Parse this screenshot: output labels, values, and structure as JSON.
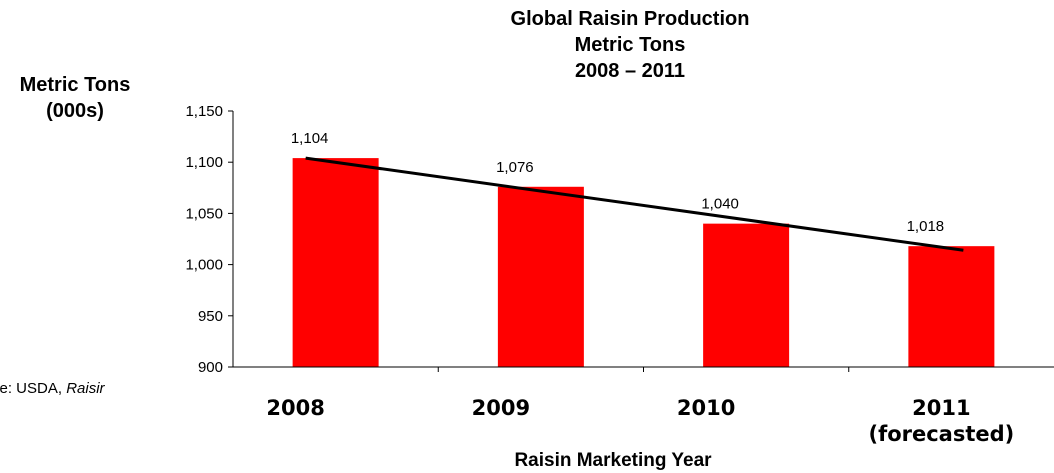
{
  "chart_data": {
    "type": "bar",
    "title_lines": [
      "Global Raisin Production",
      "Metric Tons",
      "2008 – 2011"
    ],
    "ylabel_lines": [
      "Metric Tons",
      "(000s)"
    ],
    "xlabel": "Raisin Marketing Year",
    "categories": [
      {
        "year": "2008",
        "note": ""
      },
      {
        "year": "2009",
        "note": ""
      },
      {
        "year": "2010",
        "note": ""
      },
      {
        "year": "2011",
        "note": "(forecasted)"
      }
    ],
    "values": [
      1104,
      1076,
      1040,
      1018
    ],
    "data_labels": [
      "1,104",
      "1,076",
      "1,040",
      "1,018"
    ],
    "ylim": [
      900,
      1150
    ],
    "yticks": [
      900,
      950,
      1000,
      1050,
      1100,
      1150
    ],
    "ytick_labels": [
      "900",
      "950",
      "1,000",
      "1,050",
      "1,100",
      "1,150"
    ],
    "trendline": {
      "start": 1104,
      "end": 1014
    },
    "grid": false,
    "bar_color": "#ff0000",
    "trend_color": "#000000"
  },
  "source": {
    "prefix": "ce: USDA, ",
    "italic": "Raisir"
  }
}
